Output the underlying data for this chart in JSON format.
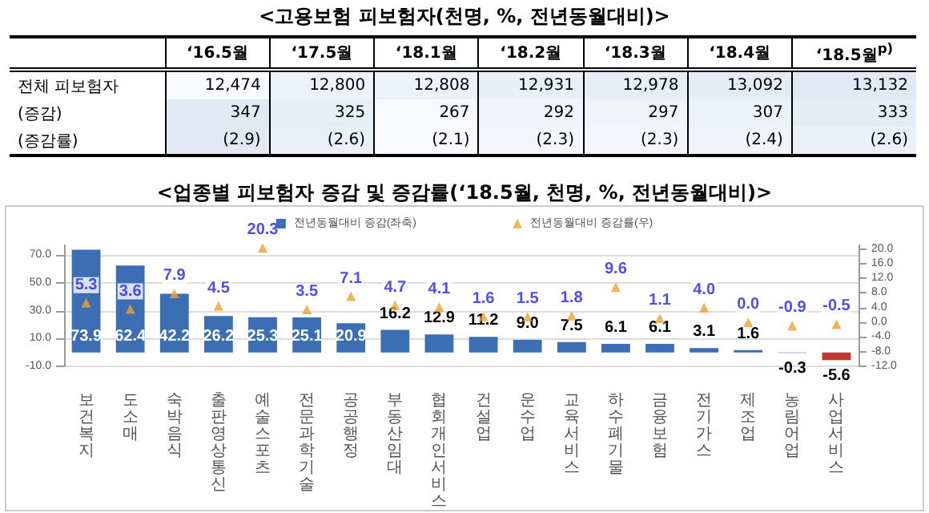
{
  "chart_data": [
    {
      "type": "heatmap",
      "title": "<고용보험 피보험자(천명, %, 전년동월대비)>",
      "categories": [
        "‘16.5월",
        "‘17.5월",
        "‘18.1월",
        "‘18.2월",
        "‘18.3월",
        "‘18.4월",
        "‘18.5월$^{p)}$"
      ],
      "y_categories": [
        "전체 피보험자",
        "(증감)",
        "(증감률)"
      ],
      "cells": [
        [
          12474,
          12800,
          12808,
          12931,
          12978,
          13092,
          13132
        ],
        [
          347,
          325,
          267,
          292,
          297,
          307,
          333
        ],
        [
          2.9,
          2.6,
          2.1,
          2.3,
          2.3,
          2.4,
          2.6
        ]
      ],
      "cell_labels": [
        [
          "12,474",
          "12,800",
          "12,808",
          "12,931",
          "12,978",
          "13,092",
          "13,132"
        ],
        [
          "347",
          "325",
          "267",
          "292",
          "297",
          "307",
          "333"
        ],
        [
          "(2.9)",
          "(2.6)",
          "(2.1)",
          "(2.3)",
          "(2.3)",
          "(2.4)",
          "(2.6)"
        ]
      ]
    },
    {
      "type": "bar",
      "title": "<업종별 피보험자 증감 및 증감률(‘18.5월, 천명, %, 전년동월대비)>",
      "categories": [
        "보건복지",
        "도소매",
        "숙박음식",
        "출판영상통신",
        "예술스포츠",
        "전문과학기술",
        "공공행정",
        "부동산임대",
        "협회개인서비스",
        "건설업",
        "운수업",
        "교육서비스",
        "하수폐기물",
        "금융보험",
        "전기가스",
        "제조업",
        "농림어업",
        "사업서비스"
      ],
      "series": [
        {
          "type": "bar",
          "name": "전년동월대비 증감(좌축)",
          "color": "#3c6eb4",
          "colors": [
            "#3c6eb4",
            "#3c6eb4",
            "#3c6eb4",
            "#3c6eb4",
            "#3c6eb4",
            "#3c6eb4",
            "#3c6eb4",
            "#3c6eb4",
            "#3c6eb4",
            "#3c6eb4",
            "#3c6eb4",
            "#3c6eb4",
            "#3c6eb4",
            "#3c6eb4",
            "#3c6eb4",
            "#3c6eb4",
            "#3c6eb4",
            "#c0392b"
          ],
          "values": [
            73.9,
            62.4,
            42.2,
            26.2,
            25.3,
            25.1,
            20.9,
            16.2,
            12.9,
            11.2,
            9.0,
            7.5,
            6.1,
            6.1,
            3.1,
            1.6,
            -0.3,
            -5.6
          ],
          "value_labels": [
            "73.9",
            "62.4",
            "42.2",
            "26.2",
            "25.3",
            "25.1",
            "20.9",
            "16.2",
            "12.9",
            "11.2",
            "9.0",
            "7.5",
            "6.1",
            "6.1",
            "3.1",
            "1.6",
            "-0.3",
            "-5.6"
          ]
        },
        {
          "type": "scatter",
          "axis": "y2",
          "marker": "triangle",
          "name": "전년동월대비 증감률(우)",
          "color": "#f0a030",
          "values": [
            5.3,
            3.6,
            7.9,
            4.5,
            20.3,
            3.5,
            7.1,
            4.7,
            4.1,
            1.6,
            1.5,
            1.8,
            9.6,
            1.1,
            4.0,
            0.0,
            -0.9,
            -0.5
          ],
          "value_labels": [
            "5.3",
            "3.6",
            "7.9",
            "4.5",
            "20.3",
            "3.5",
            "7.1",
            "4.7",
            "4.1",
            "1.6",
            "1.5",
            "1.8",
            "9.6",
            "1.1",
            "4.0",
            "0.0",
            "-0.9",
            "-0.5"
          ]
        }
      ],
      "ylim": [
        -10,
        77
      ],
      "yticks": [
        {
          "value": -10,
          "label": "-10.0"
        },
        {
          "value": 10,
          "label": "10.0"
        },
        {
          "value": 30,
          "label": "30.0"
        },
        {
          "value": 50,
          "label": "50.0"
        },
        {
          "value": 70,
          "label": "70.0"
        }
      ],
      "y2lim": [
        -12,
        21
      ],
      "y2ticks": [
        {
          "value": -12,
          "label": "-12.0"
        },
        {
          "value": -8,
          "label": "-8.0"
        },
        {
          "value": -4,
          "label": "-4.0"
        },
        {
          "value": 0,
          "label": "0.0"
        },
        {
          "value": 4,
          "label": "4.0"
        },
        {
          "value": 8,
          "label": "8.0"
        },
        {
          "value": 12,
          "label": "12.0"
        },
        {
          "value": 16,
          "label": "16.0"
        },
        {
          "value": 20,
          "label": "20.0"
        }
      ],
      "grid": "y",
      "legend": "top"
    }
  ]
}
